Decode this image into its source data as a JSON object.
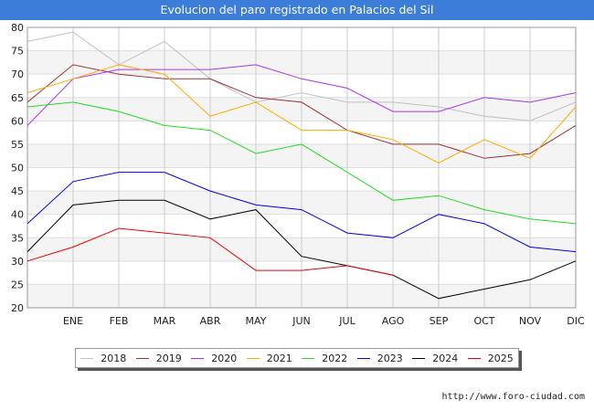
{
  "title": "Evolucion del paro registrado en Palacios del Sil",
  "source": "http://www.foro-ciudad.com",
  "chart_data": {
    "type": "line",
    "title": "Evolucion del paro registrado en Palacios del Sil",
    "xlabel": "",
    "ylabel": "",
    "categories": [
      "",
      "ENE",
      "FEB",
      "MAR",
      "ABR",
      "MAY",
      "JUN",
      "JUL",
      "AGO",
      "SEP",
      "OCT",
      "NOV",
      "DIC"
    ],
    "ylim": [
      20,
      80
    ],
    "yticks": [
      20,
      25,
      30,
      35,
      40,
      45,
      50,
      55,
      60,
      65,
      70,
      75,
      80
    ],
    "grid": true,
    "legend_position": "bottom",
    "series": [
      {
        "name": "2018",
        "color": "#c0c0c0",
        "values": [
          77,
          79,
          72,
          77,
          69,
          64,
          66,
          64,
          64,
          63,
          61,
          60,
          64
        ]
      },
      {
        "name": "2019",
        "color": "#993333",
        "values": [
          64,
          72,
          70,
          69,
          69,
          65,
          64,
          58,
          55,
          55,
          52,
          53,
          59
        ]
      },
      {
        "name": "2020",
        "color": "#aa33ee",
        "values": [
          59,
          69,
          71,
          71,
          71,
          72,
          69,
          67,
          62,
          62,
          65,
          64,
          66
        ]
      },
      {
        "name": "2021",
        "color": "#ffaa00",
        "values": [
          66,
          69,
          72,
          70,
          61,
          64,
          58,
          58,
          56,
          51,
          56,
          52,
          63
        ]
      },
      {
        "name": "2022",
        "color": "#22dd22",
        "values": [
          63,
          64,
          62,
          59,
          58,
          53,
          55,
          49,
          43,
          44,
          41,
          39,
          38
        ]
      },
      {
        "name": "2023",
        "color": "#0000ee",
        "values": [
          38,
          47,
          49,
          49,
          45,
          42,
          41,
          36,
          35,
          40,
          38,
          33,
          32
        ]
      },
      {
        "name": "2024",
        "color": "#000000",
        "values": [
          32,
          42,
          43,
          43,
          39,
          41,
          31,
          29,
          27,
          22,
          24,
          26,
          30
        ]
      },
      {
        "name": "2025",
        "color": "#ee0000",
        "values": [
          30,
          33,
          37,
          36,
          35,
          28,
          28,
          29,
          27,
          null,
          null,
          null,
          null
        ]
      }
    ]
  }
}
